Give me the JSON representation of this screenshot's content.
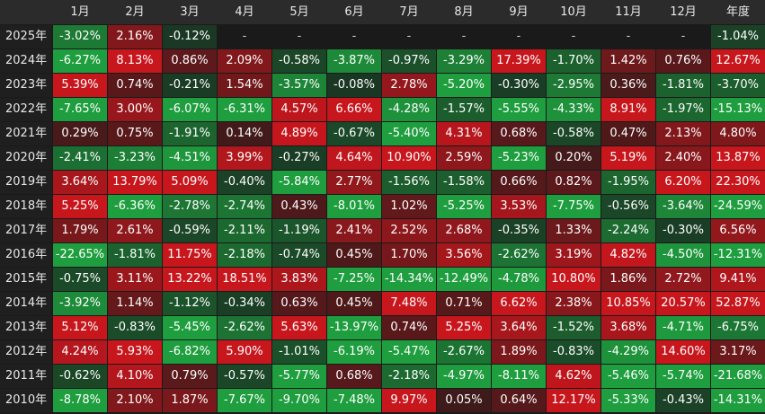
{
  "chart_data": {
    "type": "heatmap",
    "columns": [
      "1月",
      "2月",
      "3月",
      "4月",
      "5月",
      "6月",
      "7月",
      "8月",
      "9月",
      "10月",
      "11月",
      "12月",
      "年度"
    ],
    "rows": [
      {
        "year": "2025年",
        "values": [
          "-3.02%",
          "2.16%",
          "-0.12%",
          "-",
          "-",
          "-",
          "-",
          "-",
          "-",
          "-",
          "-",
          "-",
          "-1.04%"
        ]
      },
      {
        "year": "2024年",
        "values": [
          "-6.27%",
          "8.13%",
          "0.86%",
          "2.09%",
          "-0.58%",
          "-3.87%",
          "-0.97%",
          "-3.29%",
          "17.39%",
          "-1.70%",
          "1.42%",
          "0.76%",
          "12.67%"
        ]
      },
      {
        "year": "2023年",
        "values": [
          "5.39%",
          "0.74%",
          "-0.21%",
          "1.54%",
          "-3.57%",
          "-0.08%",
          "2.78%",
          "-5.20%",
          "-0.30%",
          "-2.95%",
          "0.36%",
          "-1.81%",
          "-3.70%"
        ]
      },
      {
        "year": "2022年",
        "values": [
          "-7.65%",
          "3.00%",
          "-6.07%",
          "-6.31%",
          "4.57%",
          "6.66%",
          "-4.28%",
          "-1.57%",
          "-5.55%",
          "-4.33%",
          "8.91%",
          "-1.97%",
          "-15.13%"
        ]
      },
      {
        "year": "2021年",
        "values": [
          "0.29%",
          "0.75%",
          "-1.91%",
          "0.14%",
          "4.89%",
          "-0.67%",
          "-5.40%",
          "4.31%",
          "0.68%",
          "-0.58%",
          "0.47%",
          "2.13%",
          "4.80%"
        ]
      },
      {
        "year": "2020年",
        "values": [
          "-2.41%",
          "-3.23%",
          "-4.51%",
          "3.99%",
          "-0.27%",
          "4.64%",
          "10.90%",
          "2.59%",
          "-5.23%",
          "0.20%",
          "5.19%",
          "2.40%",
          "13.87%"
        ]
      },
      {
        "year": "2019年",
        "values": [
          "3.64%",
          "13.79%",
          "5.09%",
          "-0.40%",
          "-5.84%",
          "2.77%",
          "-1.56%",
          "-1.58%",
          "0.66%",
          "0.82%",
          "-1.95%",
          "6.20%",
          "22.30%"
        ]
      },
      {
        "year": "2018年",
        "values": [
          "5.25%",
          "-6.36%",
          "-2.78%",
          "-2.74%",
          "0.43%",
          "-8.01%",
          "1.02%",
          "-5.25%",
          "3.53%",
          "-7.75%",
          "-0.56%",
          "-3.64%",
          "-24.59%"
        ]
      },
      {
        "year": "2017年",
        "values": [
          "1.79%",
          "2.61%",
          "-0.59%",
          "-2.11%",
          "-1.19%",
          "2.41%",
          "2.52%",
          "2.68%",
          "-0.35%",
          "1.33%",
          "-2.24%",
          "-0.30%",
          "6.56%"
        ]
      },
      {
        "year": "2016年",
        "values": [
          "-22.65%",
          "-1.81%",
          "11.75%",
          "-2.18%",
          "-0.74%",
          "0.45%",
          "1.70%",
          "3.56%",
          "-2.62%",
          "3.19%",
          "4.82%",
          "-4.50%",
          "-12.31%"
        ]
      },
      {
        "year": "2015年",
        "values": [
          "-0.75%",
          "3.11%",
          "13.22%",
          "18.51%",
          "3.83%",
          "-7.25%",
          "-14.34%",
          "-12.49%",
          "-4.78%",
          "10.80%",
          "1.86%",
          "2.72%",
          "9.41%"
        ]
      },
      {
        "year": "2014年",
        "values": [
          "-3.92%",
          "1.14%",
          "-1.12%",
          "-0.34%",
          "0.63%",
          "0.45%",
          "7.48%",
          "0.71%",
          "6.62%",
          "2.38%",
          "10.85%",
          "20.57%",
          "52.87%"
        ]
      },
      {
        "year": "2013年",
        "values": [
          "5.12%",
          "-0.83%",
          "-5.45%",
          "-2.62%",
          "5.63%",
          "-13.97%",
          "0.74%",
          "5.25%",
          "3.64%",
          "-1.52%",
          "3.68%",
          "-4.71%",
          "-6.75%"
        ]
      },
      {
        "year": "2012年",
        "values": [
          "4.24%",
          "5.93%",
          "-6.82%",
          "5.90%",
          "-1.01%",
          "-6.19%",
          "-5.47%",
          "-2.67%",
          "1.89%",
          "-0.83%",
          "-4.29%",
          "14.60%",
          "3.17%"
        ]
      },
      {
        "year": "2011年",
        "values": [
          "-0.62%",
          "4.10%",
          "0.79%",
          "-0.57%",
          "-5.77%",
          "0.68%",
          "-2.18%",
          "-4.97%",
          "-8.11%",
          "4.62%",
          "-5.46%",
          "-5.74%",
          "-21.68%"
        ]
      },
      {
        "year": "2010年",
        "values": [
          "-8.78%",
          "2.10%",
          "1.87%",
          "-7.67%",
          "-9.70%",
          "-7.48%",
          "9.97%",
          "0.05%",
          "0.64%",
          "12.17%",
          "-5.33%",
          "-0.43%",
          "-14.31%"
        ]
      }
    ],
    "colors": {
      "positive_low": "#3a1a1a",
      "positive_high": "#c8161d",
      "negative_low": "#1a3322",
      "negative_high": "#1e9e3e",
      "missing": "#1a1a1a",
      "header_bg": "#2b2b2b",
      "year_bg": "#1f1f1f",
      "text": "#ffffff"
    }
  }
}
